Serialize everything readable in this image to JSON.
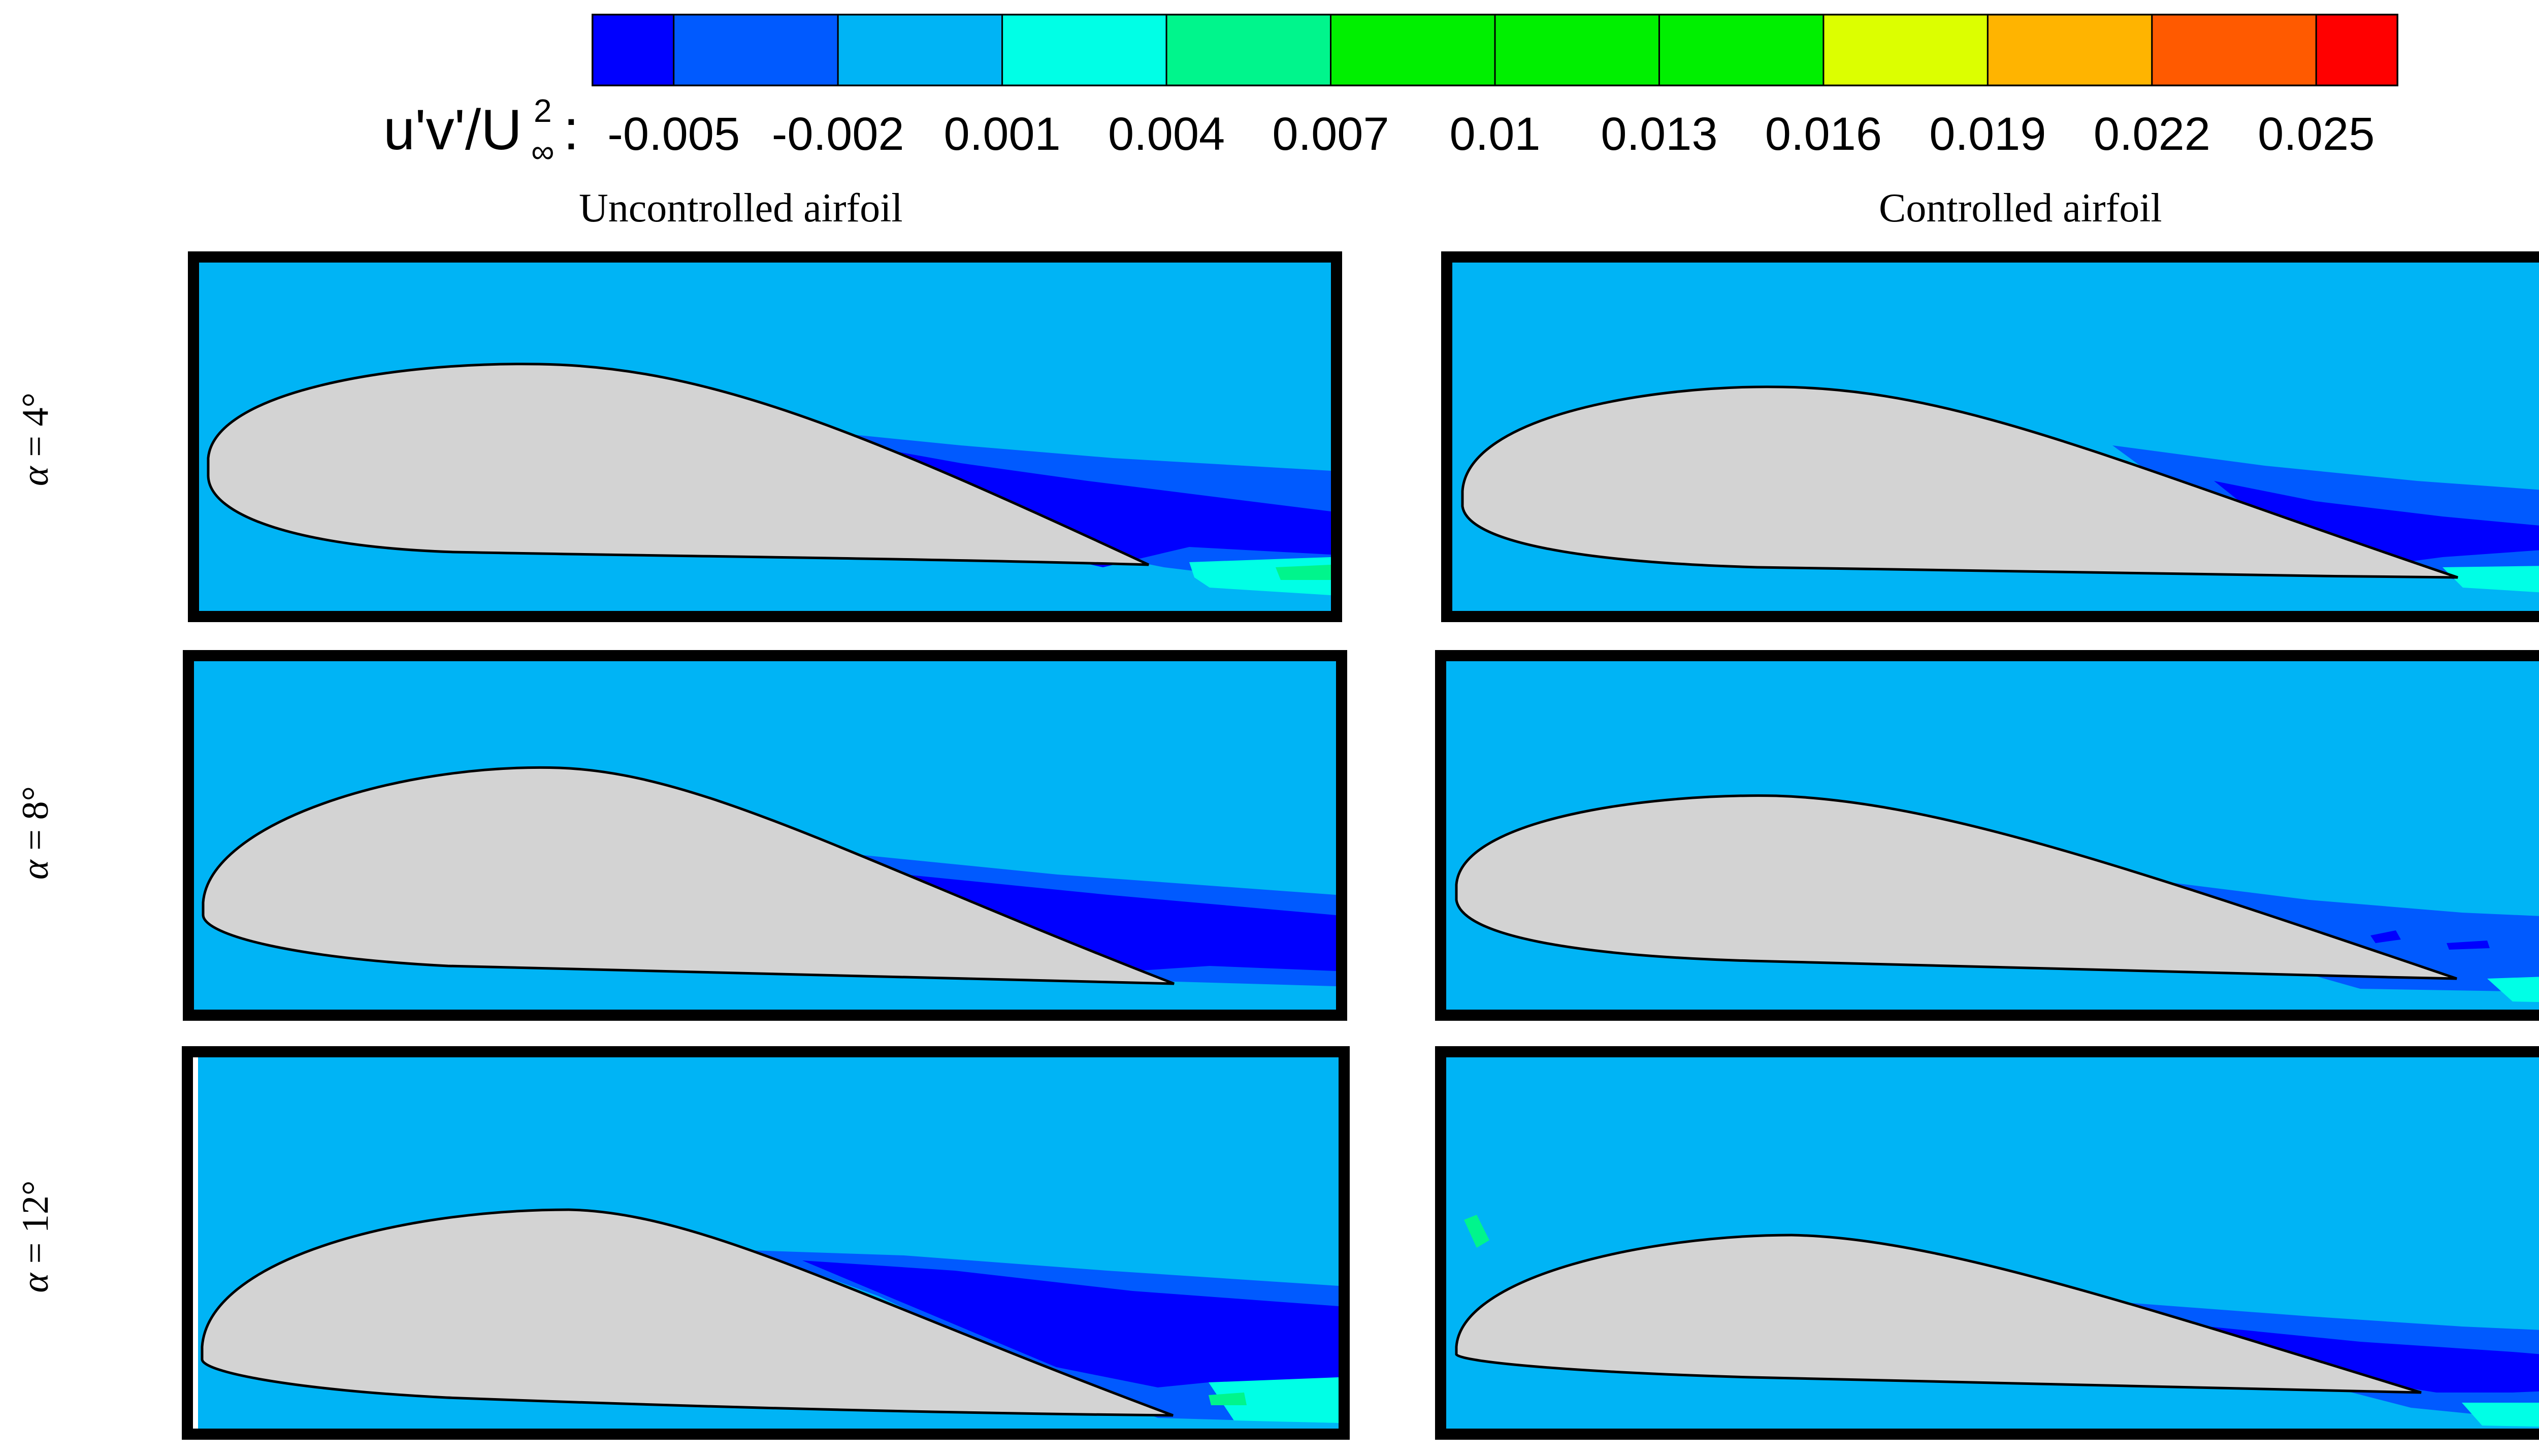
{
  "legend": {
    "label_main": "u'v'/U",
    "label_sup": "2",
    "label_sub": "∞",
    "label_colon": ":",
    "ticks": [
      "-0.005",
      "-0.002",
      "0.001",
      "0.004",
      "0.007",
      "0.01",
      "0.013",
      "0.016",
      "0.019",
      "0.022",
      "0.025"
    ],
    "colors": [
      "#0000ff",
      "#005aff",
      "#00b4f5",
      "#00ffe6",
      "#00f58c",
      "#00f000",
      "#00f000",
      "#00f000",
      "#dcff00",
      "#ffb400",
      "#ff5a00",
      "#ff0000"
    ]
  },
  "columns": {
    "left_title": "Uncontrolled airfoil",
    "right_title": "Controlled airfoil"
  },
  "rows": [
    {
      "alpha": "α",
      "eq": " = 4°"
    },
    {
      "alpha": "α",
      "eq": " = 8°"
    },
    {
      "alpha": "α",
      "eq": " = 12°"
    }
  ],
  "colors": {
    "freestream": "#00b4f5",
    "airfoil": "#d3d3d3",
    "neg_strong": "#0000ff",
    "neg_weak": "#005aff",
    "pos_weak": "#00ffe6",
    "pos_mid": "#00f58c"
  }
}
